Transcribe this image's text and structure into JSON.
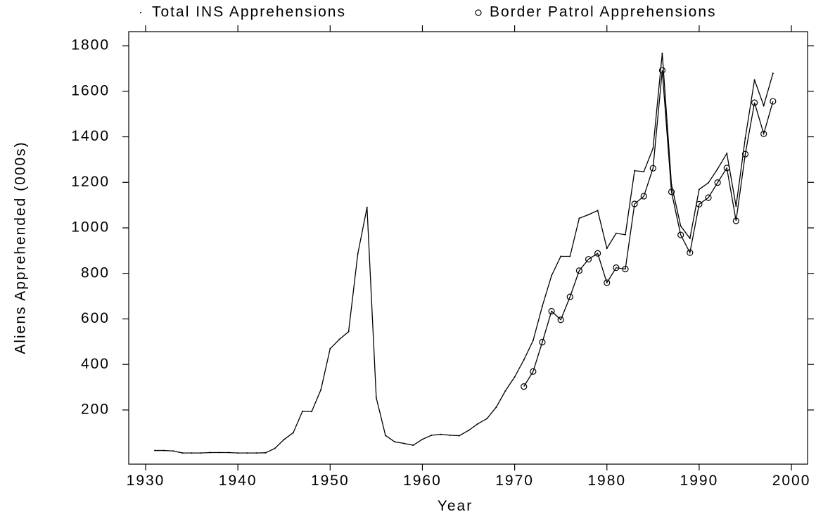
{
  "chart_data": {
    "type": "line",
    "xlabel": "Year",
    "ylabel": "Aliens Apprehended (000s)",
    "series": [
      {
        "name": "Total INS Apprehensions",
        "color": "#000000",
        "marker": "dot",
        "x": [
          1931,
          1932,
          1933,
          1934,
          1935,
          1936,
          1937,
          1938,
          1939,
          1940,
          1941,
          1942,
          1943,
          1944,
          1945,
          1946,
          1947,
          1948,
          1949,
          1950,
          1951,
          1952,
          1953,
          1954,
          1955,
          1956,
          1957,
          1958,
          1959,
          1960,
          1961,
          1962,
          1963,
          1964,
          1965,
          1966,
          1967,
          1968,
          1969,
          1970,
          1971,
          1972,
          1973,
          1974,
          1975,
          1976,
          1977,
          1978,
          1979,
          1980,
          1981,
          1982,
          1983,
          1984,
          1985,
          1986,
          1987,
          1988,
          1989,
          1990,
          1991,
          1992,
          1993,
          1994,
          1995,
          1996,
          1997,
          1998
        ],
        "values": [
          22,
          22,
          20,
          11,
          11,
          11,
          13,
          13,
          13,
          11,
          11,
          11,
          12,
          31,
          70,
          100,
          194,
          193,
          289,
          469,
          510,
          544,
          886,
          1090,
          254,
          88,
          60,
          53,
          45,
          71,
          89,
          93,
          89,
          87,
          110,
          139,
          162,
          212,
          284,
          345,
          420,
          505,
          656,
          790,
          875,
          875,
          1042,
          1058,
          1076,
          910,
          976,
          970,
          1251,
          1247,
          1349,
          1767,
          1190,
          1008,
          954,
          1169,
          1198,
          1259,
          1327,
          1095,
          1395,
          1650,
          1537,
          1679
        ]
      },
      {
        "name": "Border Patrol Apprehensions",
        "color": "#000000",
        "marker": "circle",
        "x": [
          1971,
          1972,
          1973,
          1974,
          1975,
          1976,
          1977,
          1978,
          1979,
          1980,
          1981,
          1982,
          1983,
          1984,
          1985,
          1986,
          1987,
          1988,
          1989,
          1990,
          1991,
          1992,
          1993,
          1994,
          1995,
          1996,
          1997,
          1998
        ],
        "values": [
          303,
          369,
          498,
          634,
          596,
          697,
          812,
          862,
          888,
          759,
          825,
          819,
          1105,
          1139,
          1262,
          1692,
          1158,
          969,
          891,
          1104,
          1133,
          1199,
          1263,
          1031,
          1324,
          1550,
          1413,
          1556
        ]
      }
    ],
    "xlim": [
      1928.17,
      2001.75
    ],
    "xticks": [
      1930,
      1940,
      1950,
      1960,
      1970,
      1980,
      1990,
      2000
    ],
    "ylim": [
      -38,
      1862
    ],
    "yticks": [
      200,
      400,
      600,
      800,
      1000,
      1200,
      1400,
      1600,
      1800
    ]
  }
}
